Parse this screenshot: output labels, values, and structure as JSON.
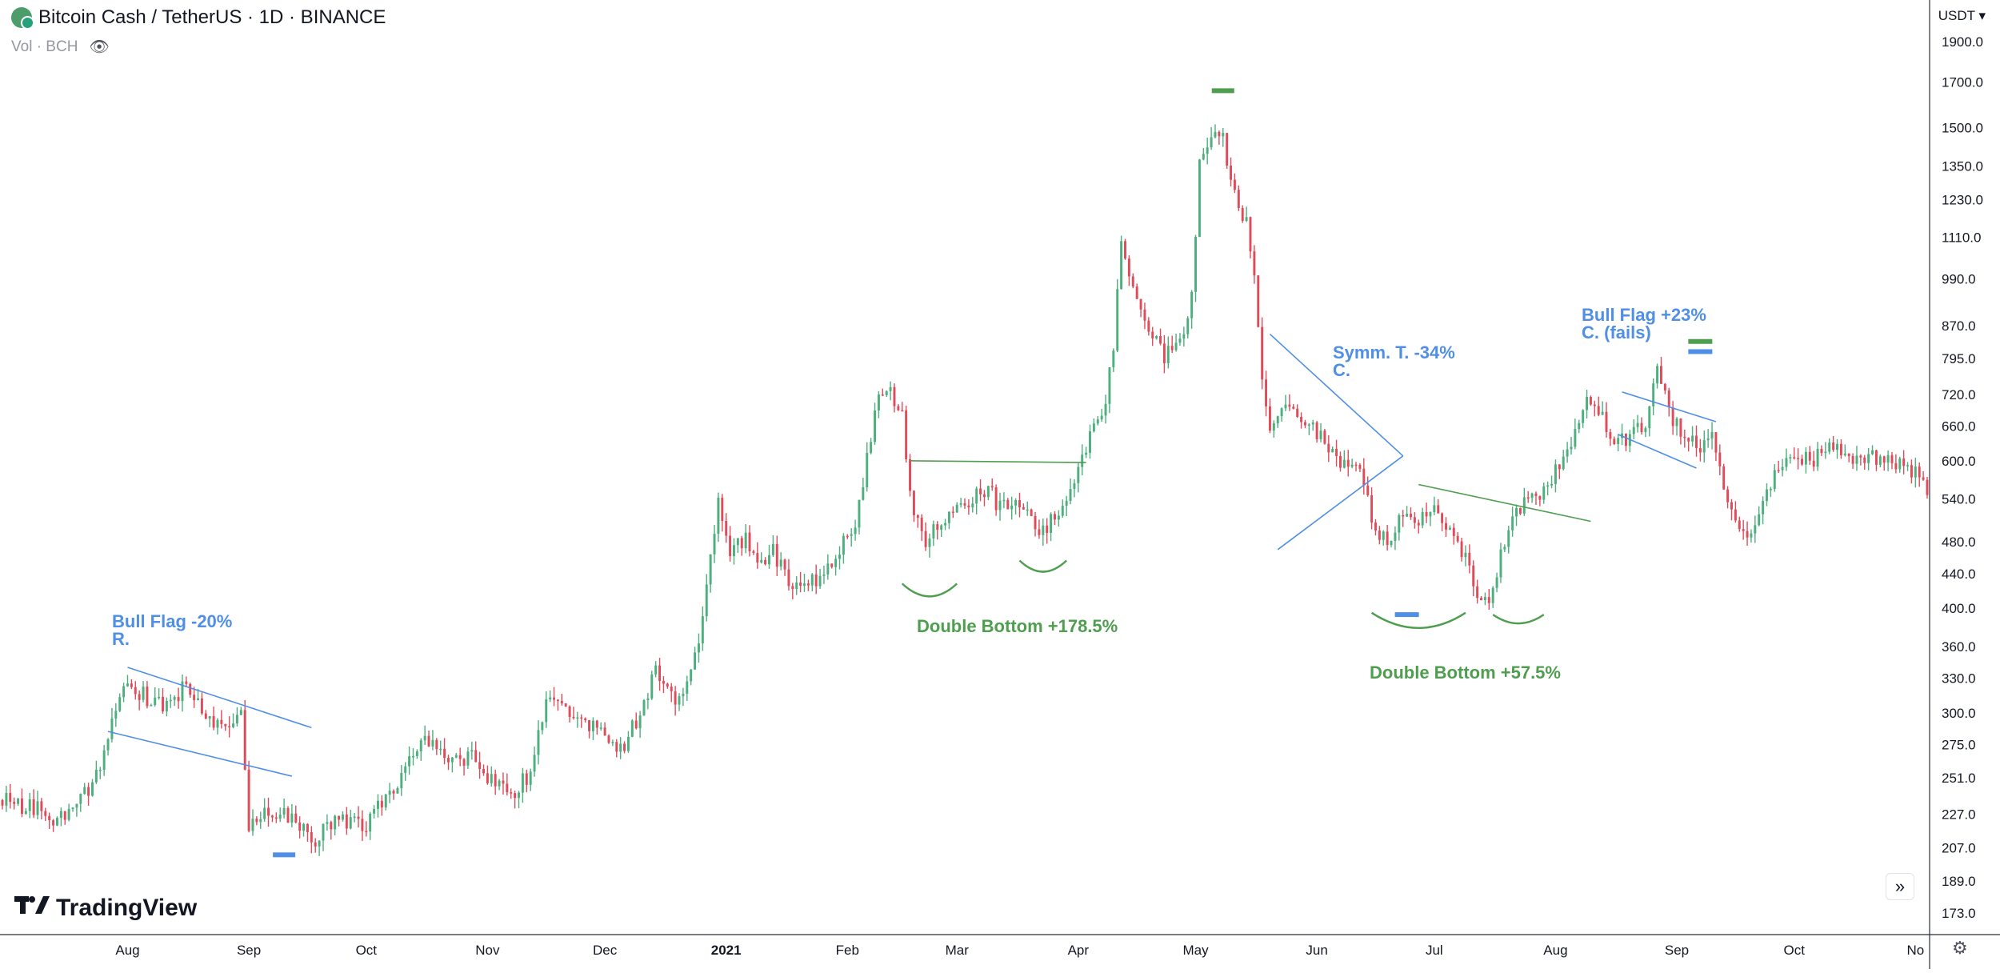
{
  "header": {
    "symbol_title": "Bitcoin Cash / TetherUS · 1D · BINANCE",
    "volume_label": "Vol · BCH",
    "eye_icon": "eye-off-icon",
    "currency": "USDT"
  },
  "branding": {
    "logo_glyph": "𝟭𝟳",
    "name": "TradingView"
  },
  "controls": {
    "expand_glyph": "»",
    "settings_glyph": "⚙"
  },
  "colors": {
    "up": "#4caf7d",
    "down": "#e04b5a",
    "blue": "#4f8fe6",
    "green": "#4f9d4f"
  },
  "chart_data": {
    "type": "candlestick",
    "scale": "log",
    "ylim": [
      165,
      2000
    ],
    "y_ticks": [
      1900.0,
      1700.0,
      1500.0,
      1350.0,
      1230.0,
      1110.0,
      990.0,
      870.0,
      795.0,
      720.0,
      660.0,
      600.0,
      540.0,
      480.0,
      440.0,
      400.0,
      360.0,
      330.0,
      300.0,
      275.0,
      251.0,
      227.0,
      207.0,
      189.0,
      173.0
    ],
    "y_tick_labels": [
      "1900.0",
      "1700.0",
      "1500.0",
      "1350.0",
      "1230.0",
      "1110.0",
      "990.0",
      "870.0",
      "795.0",
      "720.0",
      "660.0",
      "600.0",
      "540.0",
      "480.0",
      "440.0",
      "400.0",
      "360.0",
      "330.0",
      "300.0",
      "275.0",
      "251.0",
      "227.0",
      "207.0",
      "189.0",
      "173.0"
    ],
    "x_ticks": [
      {
        "label": "Aug",
        "day": 32,
        "bold": false
      },
      {
        "label": "Sep",
        "day": 63,
        "bold": false
      },
      {
        "label": "Oct",
        "day": 93,
        "bold": false
      },
      {
        "label": "Nov",
        "day": 124,
        "bold": false
      },
      {
        "label": "Dec",
        "day": 154,
        "bold": false
      },
      {
        "label": "2021",
        "day": 185,
        "bold": true
      },
      {
        "label": "Feb",
        "day": 216,
        "bold": false
      },
      {
        "label": "Mar",
        "day": 244,
        "bold": false
      },
      {
        "label": "Apr",
        "day": 275,
        "bold": false
      },
      {
        "label": "May",
        "day": 305,
        "bold": false
      },
      {
        "label": "Jun",
        "day": 336,
        "bold": false
      },
      {
        "label": "Jul",
        "day": 366,
        "bold": false
      },
      {
        "label": "Aug",
        "day": 397,
        "bold": false
      },
      {
        "label": "Sep",
        "day": 428,
        "bold": false
      },
      {
        "label": "Oct",
        "day": 458,
        "bold": false
      },
      {
        "label": "No",
        "day": 489,
        "bold": false
      }
    ],
    "day_range": [
      0,
      492
    ],
    "price_path": [
      [
        0,
        236
      ],
      [
        10,
        230
      ],
      [
        14,
        222
      ],
      [
        20,
        235
      ],
      [
        25,
        258
      ],
      [
        28,
        290
      ],
      [
        31,
        330
      ],
      [
        36,
        315
      ],
      [
        42,
        305
      ],
      [
        47,
        325
      ],
      [
        52,
        300
      ],
      [
        56,
        285
      ],
      [
        59,
        295
      ],
      [
        61,
        295
      ],
      [
        63,
        222
      ],
      [
        67,
        229
      ],
      [
        72,
        227
      ],
      [
        77,
        220
      ],
      [
        80,
        212
      ],
      [
        85,
        222
      ],
      [
        93,
        220
      ],
      [
        100,
        245
      ],
      [
        106,
        270
      ],
      [
        110,
        280
      ],
      [
        114,
        265
      ],
      [
        118,
        262
      ],
      [
        121,
        268
      ],
      [
        124,
        250
      ],
      [
        130,
        240
      ],
      [
        135,
        255
      ],
      [
        140,
        320
      ],
      [
        144,
        300
      ],
      [
        148,
        295
      ],
      [
        155,
        283
      ],
      [
        158,
        270
      ],
      [
        163,
        300
      ],
      [
        167,
        340
      ],
      [
        172,
        310
      ],
      [
        176,
        330
      ],
      [
        180,
        420
      ],
      [
        183,
        540
      ],
      [
        186,
        460
      ],
      [
        190,
        490
      ],
      [
        193,
        455
      ],
      [
        197,
        470
      ],
      [
        200,
        440
      ],
      [
        203,
        420
      ],
      [
        208,
        435
      ],
      [
        212,
        450
      ],
      [
        218,
        505
      ],
      [
        221,
        600
      ],
      [
        223,
        700
      ],
      [
        227,
        720
      ],
      [
        230,
        700
      ],
      [
        232,
        540
      ],
      [
        236,
        485
      ],
      [
        240,
        500
      ],
      [
        244,
        520
      ],
      [
        248,
        545
      ],
      [
        252,
        560
      ],
      [
        255,
        525
      ],
      [
        258,
        530
      ],
      [
        262,
        520
      ],
      [
        265,
        490
      ],
      [
        270,
        520
      ],
      [
        275,
        580
      ],
      [
        278,
        650
      ],
      [
        282,
        700
      ],
      [
        284,
        820
      ],
      [
        286,
        1080
      ],
      [
        288,
        980
      ],
      [
        291,
        920
      ],
      [
        294,
        840
      ],
      [
        297,
        800
      ],
      [
        301,
        830
      ],
      [
        304,
        940
      ],
      [
        306,
        1380
      ],
      [
        309,
        1450
      ],
      [
        312,
        1500
      ],
      [
        314,
        1280
      ],
      [
        318,
        1150
      ],
      [
        320,
        1000
      ],
      [
        322,
        750
      ],
      [
        324,
        650
      ],
      [
        327,
        700
      ],
      [
        331,
        690
      ],
      [
        334,
        660
      ],
      [
        338,
        630
      ],
      [
        342,
        595
      ],
      [
        346,
        590
      ],
      [
        348,
        560
      ],
      [
        351,
        495
      ],
      [
        354,
        480
      ],
      [
        358,
        520
      ],
      [
        362,
        515
      ],
      [
        366,
        520
      ],
      [
        370,
        490
      ],
      [
        374,
        460
      ],
      [
        377,
        410
      ],
      [
        380,
        400
      ],
      [
        383,
        470
      ],
      [
        387,
        520
      ],
      [
        391,
        540
      ],
      [
        395,
        560
      ],
      [
        398,
        600
      ],
      [
        402,
        640
      ],
      [
        405,
        700
      ],
      [
        409,
        670
      ],
      [
        413,
        630
      ],
      [
        417,
        650
      ],
      [
        420,
        660
      ],
      [
        423,
        780
      ],
      [
        426,
        680
      ],
      [
        430,
        640
      ],
      [
        434,
        620
      ],
      [
        437,
        640
      ],
      [
        440,
        560
      ],
      [
        444,
        500
      ],
      [
        447,
        490
      ],
      [
        451,
        560
      ],
      [
        455,
        590
      ],
      [
        459,
        610
      ],
      [
        463,
        600
      ],
      [
        467,
        620
      ],
      [
        471,
        610
      ],
      [
        476,
        605
      ],
      [
        480,
        600
      ],
      [
        485,
        590
      ],
      [
        488,
        585
      ],
      [
        492,
        560
      ]
    ]
  },
  "annotations": [
    {
      "title": "Bull Flag -20%",
      "subtitle": "R.",
      "color": "#4f8fe6"
    },
    {
      "title": "Double Bottom +178.5%",
      "subtitle": "",
      "color": "#4f9d4f"
    },
    {
      "title": "Symm. T. -34%",
      "subtitle": "C.",
      "color": "#4f8fe6"
    },
    {
      "title": "Double Bottom +57.5%",
      "subtitle": "",
      "color": "#4f9d4f"
    },
    {
      "title": "Bull Flag +23%",
      "subtitle": "C. (fails)",
      "color": "#4f8fe6"
    }
  ]
}
